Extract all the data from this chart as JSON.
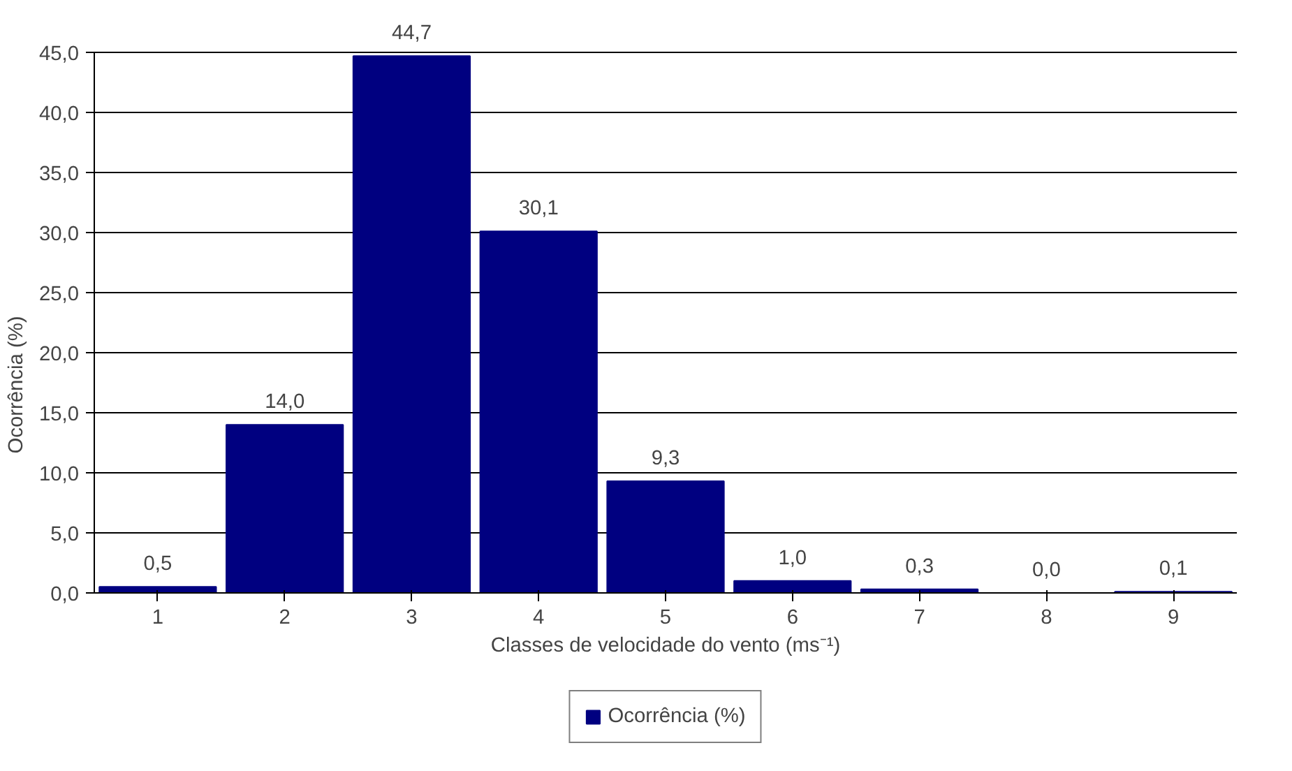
{
  "chart_data": {
    "type": "bar",
    "xlabel": "Classes de velocidade do vento (ms⁻¹)",
    "ylabel": "Ocorrência (%)",
    "categories": [
      "1",
      "2",
      "3",
      "4",
      "5",
      "6",
      "7",
      "8",
      "9"
    ],
    "series": [
      {
        "name": "Ocorrência (%)",
        "color": "#000080",
        "values": [
          0.5,
          14.0,
          44.7,
          30.1,
          9.3,
          1.0,
          0.3,
          0.0,
          0.1
        ],
        "value_labels": [
          "0,5",
          "14,0",
          "44,7",
          "30,1",
          "9,3",
          "1,0",
          "0,3",
          "0,0",
          "0,1"
        ]
      }
    ],
    "ylim": [
      0,
      45
    ],
    "yticks": [
      {
        "value": 0,
        "label": "0,0"
      },
      {
        "value": 5,
        "label": "5,0"
      },
      {
        "value": 10,
        "label": "10,0"
      },
      {
        "value": 15,
        "label": "15,0"
      },
      {
        "value": 20,
        "label": "20,0"
      },
      {
        "value": 25,
        "label": "25,0"
      },
      {
        "value": 30,
        "label": "30,0"
      },
      {
        "value": 35,
        "label": "35,0"
      },
      {
        "value": 40,
        "label": "40,0"
      },
      {
        "value": 45,
        "label": "45,0"
      }
    ],
    "grid": "y",
    "legend": "bottom"
  }
}
